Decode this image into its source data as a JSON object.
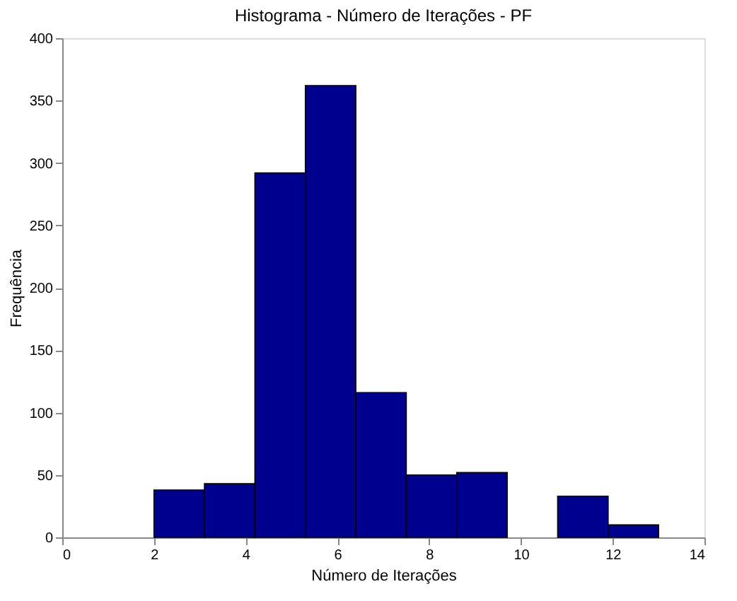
{
  "chart_data": {
    "type": "histogram",
    "title": "Histograma - Número de Iterações - PF",
    "xlabel": "Número de Iterações",
    "ylabel": "Frequência",
    "bins": [
      2,
      3.1,
      4.2,
      5.3,
      6.4,
      7.5,
      8.6,
      9.7,
      10.8,
      11.9,
      13
    ],
    "values": [
      38,
      43,
      292,
      362,
      116,
      50,
      52,
      0,
      33,
      10
    ],
    "color": "#00008f",
    "xlim": [
      0,
      14
    ],
    "xticks": [
      0,
      2,
      4,
      6,
      8,
      10,
      12,
      14
    ],
    "ylim": [
      0,
      400
    ],
    "yticks": [
      0,
      50,
      100,
      150,
      200,
      250,
      300,
      350,
      400
    ],
    "grid": false
  }
}
